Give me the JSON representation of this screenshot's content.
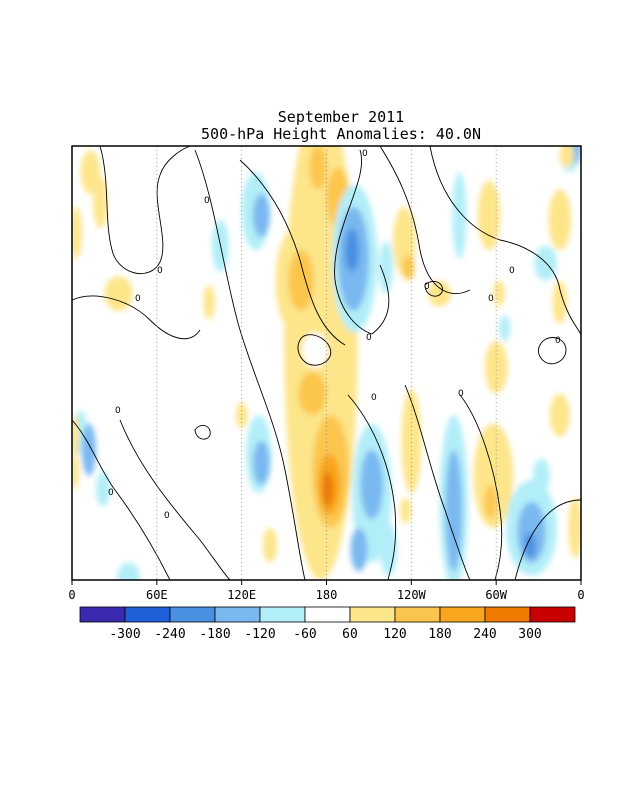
{
  "chart_data": {
    "type": "heatmap",
    "title": "September 2011",
    "subtitle": "500-hPa Height Anomalies: 40.0N",
    "x_ticks": [
      "0",
      "60E",
      "120E",
      "180",
      "120W",
      "60W",
      "0"
    ],
    "x_tick_values": [
      0,
      60,
      120,
      180,
      240,
      300,
      360
    ],
    "xlim": [
      0,
      360
    ],
    "grid": "dotted vertical lines at 60E, 120E, 180, 120W, 60W",
    "contour_label": "0",
    "colorbar": {
      "placement": "bottom",
      "labels": [
        "-300",
        "-240",
        "-180",
        "-120",
        "-60",
        "60",
        "120",
        "180",
        "240",
        "300"
      ],
      "colors": [
        "#3a2ab0",
        "#1f5fd8",
        "#4a90e2",
        "#7ab8f0",
        "#b2eef8",
        "#ffffff",
        "#fde58a",
        "#fcc64e",
        "#f9a51d",
        "#f07a00",
        "#c80000"
      ]
    },
    "anomalies": [
      {
        "x": 13,
        "y": 0.06,
        "rx": 7,
        "ry": 0.05,
        "value": 60
      },
      {
        "x": 20,
        "y": 0.13,
        "rx": 5,
        "ry": 0.06,
        "value": 60
      },
      {
        "x": 3,
        "y": 0.2,
        "rx": 4,
        "ry": 0.06,
        "value": 60
      },
      {
        "x": 33,
        "y": 0.34,
        "rx": 10,
        "ry": 0.04,
        "value": 60
      },
      {
        "x": 6,
        "y": 0.66,
        "rx": 5,
        "ry": 0.05,
        "value": -60
      },
      {
        "x": 12,
        "y": 0.7,
        "rx": 5,
        "ry": 0.06,
        "value": -120
      },
      {
        "x": 2,
        "y": 0.67,
        "rx": 3,
        "ry": 0.05,
        "value": 60
      },
      {
        "x": 2,
        "y": 0.75,
        "rx": 3,
        "ry": 0.04,
        "value": 60
      },
      {
        "x": 22,
        "y": 0.79,
        "rx": 5,
        "ry": 0.04,
        "value": -60
      },
      {
        "x": 40,
        "y": 0.99,
        "rx": 8,
        "ry": 0.03,
        "value": -60
      },
      {
        "x": 105,
        "y": 0.23,
        "rx": 6,
        "ry": 0.06,
        "value": -60
      },
      {
        "x": 97,
        "y": 0.36,
        "rx": 4,
        "ry": 0.04,
        "value": 60
      },
      {
        "x": 130,
        "y": 0.15,
        "rx": 10,
        "ry": 0.09,
        "value": -60
      },
      {
        "x": 134,
        "y": 0.16,
        "rx": 6,
        "ry": 0.05,
        "value": -120
      },
      {
        "x": 132,
        "y": 0.71,
        "rx": 9,
        "ry": 0.09,
        "value": -60
      },
      {
        "x": 134,
        "y": 0.73,
        "rx": 6,
        "ry": 0.05,
        "value": -120
      },
      {
        "x": 140,
        "y": 0.92,
        "rx": 5,
        "ry": 0.04,
        "value": 60
      },
      {
        "x": 120,
        "y": 0.62,
        "rx": 4,
        "ry": 0.03,
        "value": 60
      },
      {
        "x": 176,
        "y": 0.45,
        "rx": 26,
        "ry": 0.55,
        "value": 60
      },
      {
        "x": 158,
        "y": 0.31,
        "rx": 14,
        "ry": 0.12,
        "value": 60
      },
      {
        "x": 162,
        "y": 0.31,
        "rx": 9,
        "ry": 0.07,
        "value": 120
      },
      {
        "x": 174,
        "y": 0.05,
        "rx": 6,
        "ry": 0.05,
        "value": 120
      },
      {
        "x": 188,
        "y": 0.12,
        "rx": 8,
        "ry": 0.07,
        "value": 120
      },
      {
        "x": 170,
        "y": 0.57,
        "rx": 10,
        "ry": 0.05,
        "value": 120
      },
      {
        "x": 183,
        "y": 0.75,
        "rx": 13,
        "ry": 0.13,
        "value": 120
      },
      {
        "x": 182,
        "y": 0.78,
        "rx": 8,
        "ry": 0.07,
        "value": 180
      },
      {
        "x": 181,
        "y": 0.79,
        "rx": 4,
        "ry": 0.04,
        "value": 240
      },
      {
        "x": 172,
        "y": 0.47,
        "rx": 9,
        "ry": 0.04,
        "value": 0
      },
      {
        "x": 200,
        "y": 0.26,
        "rx": 16,
        "ry": 0.17,
        "value": -60
      },
      {
        "x": 199,
        "y": 0.26,
        "rx": 11,
        "ry": 0.12,
        "value": -120
      },
      {
        "x": 198,
        "y": 0.24,
        "rx": 5,
        "ry": 0.05,
        "value": -180
      },
      {
        "x": 212,
        "y": 0.8,
        "rx": 14,
        "ry": 0.16,
        "value": -60
      },
      {
        "x": 212,
        "y": 0.78,
        "rx": 8,
        "ry": 0.08,
        "value": -120
      },
      {
        "x": 203,
        "y": 0.93,
        "rx": 6,
        "ry": 0.05,
        "value": -120
      },
      {
        "x": 224,
        "y": 0.93,
        "rx": 6,
        "ry": 0.06,
        "value": -60
      },
      {
        "x": 235,
        "y": 0.22,
        "rx": 8,
        "ry": 0.08,
        "value": 60
      },
      {
        "x": 238,
        "y": 0.28,
        "rx": 4,
        "ry": 0.03,
        "value": 120
      },
      {
        "x": 222,
        "y": 0.28,
        "rx": 5,
        "ry": 0.06,
        "value": -60
      },
      {
        "x": 240,
        "y": 0.68,
        "rx": 7,
        "ry": 0.12,
        "value": 60
      },
      {
        "x": 236,
        "y": 0.84,
        "rx": 4,
        "ry": 0.03,
        "value": 60
      },
      {
        "x": 270,
        "y": 0.82,
        "rx": 10,
        "ry": 0.2,
        "value": -60
      },
      {
        "x": 270,
        "y": 0.84,
        "rx": 6,
        "ry": 0.14,
        "value": -120
      },
      {
        "x": 274,
        "y": 0.16,
        "rx": 5,
        "ry": 0.1,
        "value": -60
      },
      {
        "x": 260,
        "y": 0.34,
        "rx": 8,
        "ry": 0.03,
        "value": 60
      },
      {
        "x": 295,
        "y": 0.16,
        "rx": 8,
        "ry": 0.08,
        "value": 60
      },
      {
        "x": 300,
        "y": 0.51,
        "rx": 8,
        "ry": 0.06,
        "value": 60
      },
      {
        "x": 298,
        "y": 0.76,
        "rx": 14,
        "ry": 0.12,
        "value": 60
      },
      {
        "x": 296,
        "y": 0.82,
        "rx": 4,
        "ry": 0.04,
        "value": 120
      },
      {
        "x": 302,
        "y": 0.34,
        "rx": 4,
        "ry": 0.03,
        "value": 60
      },
      {
        "x": 306,
        "y": 0.42,
        "rx": 4,
        "ry": 0.03,
        "value": -60
      },
      {
        "x": 325,
        "y": 0.88,
        "rx": 18,
        "ry": 0.11,
        "value": -60
      },
      {
        "x": 325,
        "y": 0.89,
        "rx": 10,
        "ry": 0.07,
        "value": -120
      },
      {
        "x": 324,
        "y": 0.92,
        "rx": 4,
        "ry": 0.03,
        "value": -180
      },
      {
        "x": 335,
        "y": 0.27,
        "rx": 8,
        "ry": 0.04,
        "value": -60
      },
      {
        "x": 332,
        "y": 0.76,
        "rx": 6,
        "ry": 0.04,
        "value": -60
      },
      {
        "x": 345,
        "y": 0.17,
        "rx": 8,
        "ry": 0.07,
        "value": 60
      },
      {
        "x": 345,
        "y": 0.36,
        "rx": 5,
        "ry": 0.05,
        "value": 60
      },
      {
        "x": 345,
        "y": 0.62,
        "rx": 7,
        "ry": 0.05,
        "value": 60
      },
      {
        "x": 356,
        "y": 0.88,
        "rx": 5,
        "ry": 0.07,
        "value": 60
      },
      {
        "x": 352,
        "y": 0.03,
        "rx": 6,
        "ry": 0.03,
        "value": -60
      },
      {
        "x": 356,
        "y": 0.01,
        "rx": 4,
        "ry": 0.03,
        "value": -120
      },
      {
        "x": 350,
        "y": 0.02,
        "rx": 5,
        "ry": 0.03,
        "value": 60
      }
    ]
  }
}
